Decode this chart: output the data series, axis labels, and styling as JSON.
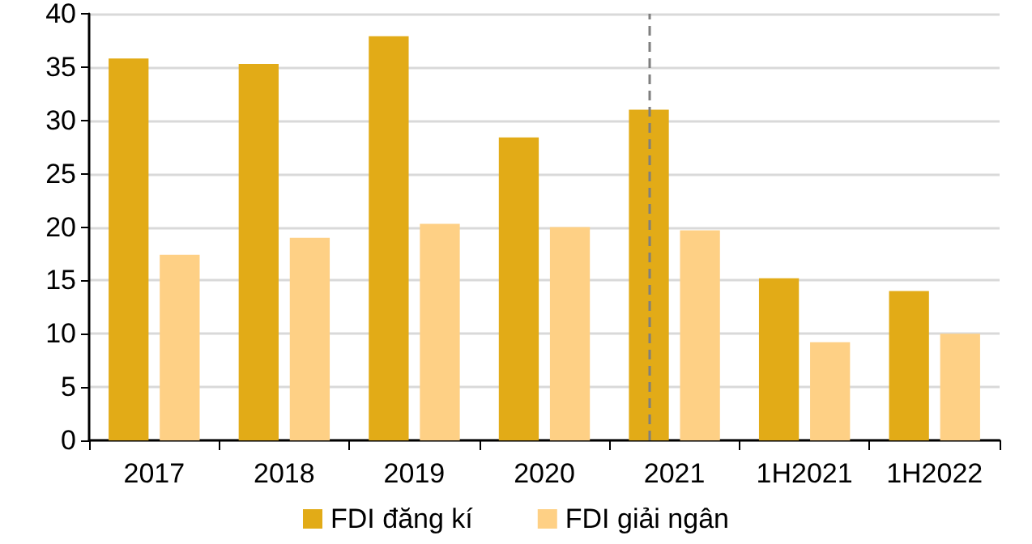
{
  "chart_data": {
    "type": "bar",
    "categories": [
      "2017",
      "2018",
      "2019",
      "2020",
      "2021",
      "1H2021",
      "1H2022"
    ],
    "series": [
      {
        "name": "FDI đăng kí",
        "color": "#e2ab17",
        "values": [
          35.8,
          35.3,
          37.9,
          28.4,
          31.0,
          15.2,
          14.0
        ]
      },
      {
        "name": "FDI giải ngân",
        "color": "#fed085",
        "values": [
          17.4,
          19.0,
          20.3,
          20.0,
          19.7,
          9.2,
          10.0
        ]
      }
    ],
    "ylim": [
      0,
      40
    ],
    "yticks": [
      0,
      5,
      10,
      15,
      20,
      25,
      30,
      35,
      40
    ],
    "grid": "y",
    "legend": "bottom",
    "ref_lines": [
      {
        "axis": "x",
        "value": "2021",
        "color": "#7f7f7f",
        "line_style": "dashed"
      }
    ]
  }
}
